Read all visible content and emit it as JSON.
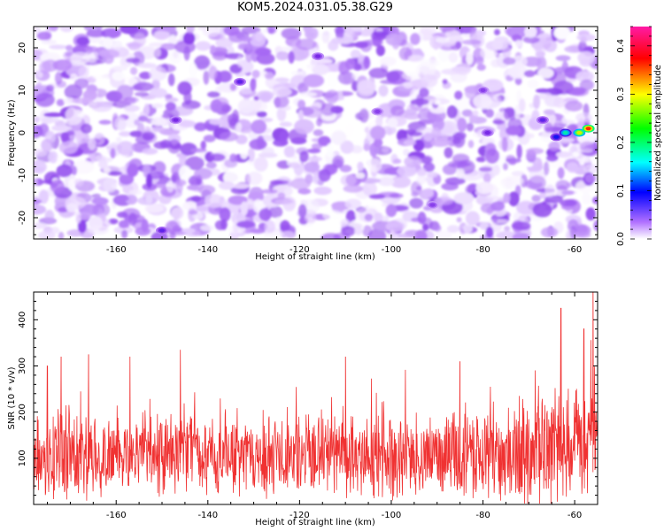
{
  "chart_data": [
    {
      "type": "heatmap",
      "title": "KOM5.2024.031.05.38.G29",
      "xlabel": "Height of straight line (km)",
      "ylabel": "Frequency (Hz)",
      "xlim": [
        -178,
        -55
      ],
      "ylim": [
        -25,
        25
      ],
      "x_ticks": [
        -160,
        -140,
        -120,
        -100,
        -80,
        -60
      ],
      "y_ticks": [
        -20,
        -10,
        0,
        10,
        20
      ],
      "colorbar": {
        "label": "Normalized spectral amplitude",
        "range": [
          0.0,
          0.44
        ],
        "ticks": [
          0.0,
          0.1,
          0.2,
          0.3,
          0.4
        ],
        "colors": [
          "#ffffff",
          "#8a2be2",
          "#0000ff",
          "#00ffff",
          "#00ff00",
          "#ffff00",
          "#ff0000",
          "#ff00aa"
        ]
      },
      "background_amplitude": [
        0.0,
        0.08
      ],
      "hotspots": [
        {
          "x": -150,
          "y": -23,
          "value": 0.1
        },
        {
          "x": -147,
          "y": 3,
          "value": 0.09
        },
        {
          "x": -133,
          "y": 12,
          "value": 0.1
        },
        {
          "x": -116,
          "y": 18,
          "value": 0.09
        },
        {
          "x": -103,
          "y": 5,
          "value": 0.08
        },
        {
          "x": -91,
          "y": -17,
          "value": 0.08
        },
        {
          "x": -80,
          "y": 10,
          "value": 0.08
        },
        {
          "x": -79,
          "y": 0,
          "value": 0.09
        },
        {
          "x": -67,
          "y": 3,
          "value": 0.1
        },
        {
          "x": -64,
          "y": -1,
          "value": 0.13
        },
        {
          "x": -62,
          "y": 0,
          "value": 0.2
        },
        {
          "x": -59,
          "y": 0,
          "value": 0.3
        },
        {
          "x": -57,
          "y": 1,
          "value": 0.4
        }
      ],
      "grid": false
    },
    {
      "type": "line",
      "xlabel": "Height of straight line (km)",
      "ylabel": "SNR (10 * v/v)",
      "xlim": [
        -178,
        -55
      ],
      "ylim": [
        0,
        460
      ],
      "x_ticks": [
        -160,
        -140,
        -120,
        -100,
        -80,
        -60
      ],
      "y_ticks": [
        100,
        200,
        300,
        400
      ],
      "color": "#f03232",
      "baseline_mean": 105,
      "noise_amplitude": 75,
      "peaks": [
        {
          "x": -175,
          "y": 300
        },
        {
          "x": -172,
          "y": 320
        },
        {
          "x": -166,
          "y": 325
        },
        {
          "x": -157,
          "y": 320
        },
        {
          "x": -146,
          "y": 335
        },
        {
          "x": -110,
          "y": 320
        },
        {
          "x": -85,
          "y": 310
        },
        {
          "x": -63,
          "y": 425
        },
        {
          "x": -58,
          "y": 380
        },
        {
          "x": -56,
          "y": 460
        }
      ],
      "grid": false
    }
  ]
}
